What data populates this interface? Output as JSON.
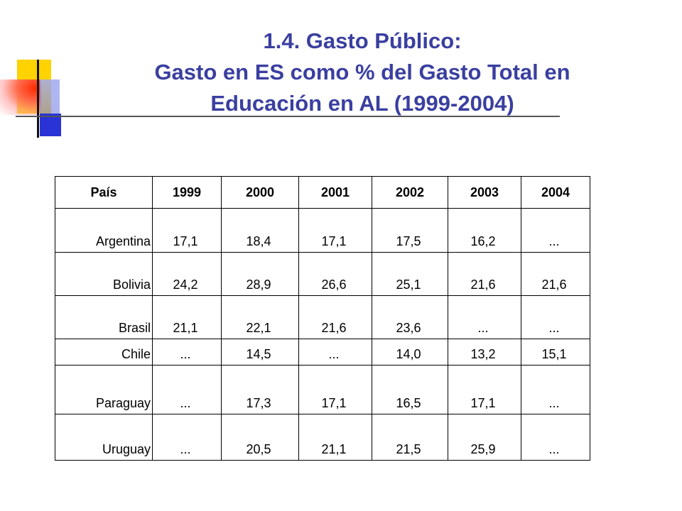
{
  "title": {
    "line1": "1.4. Gasto Público:",
    "line2": "Gasto en ES como % del Gasto Total en",
    "line3": "Educación en AL (1999-2004)"
  },
  "table": {
    "headers": [
      "País",
      "1999",
      "2000",
      "2001",
      "2002",
      "2003",
      "2004"
    ],
    "rows": [
      [
        "Argentina",
        "17,1",
        "18,4",
        "17,1",
        "17,5",
        "16,2",
        "..."
      ],
      [
        "Bolivia",
        "24,2",
        "28,9",
        "26,6",
        "25,1",
        "21,6",
        "21,6"
      ],
      [
        "Brasil",
        "21,1",
        "22,1",
        "21,6",
        "23,6",
        "...",
        "..."
      ],
      [
        "Chile",
        "...",
        "14,5",
        "...",
        "14,0",
        "13,2",
        "15,1"
      ],
      [
        "Paraguay",
        "...",
        "17,3",
        "17,1",
        "16,5",
        "17,1",
        "..."
      ],
      [
        "Uruguay",
        "...",
        "20,5",
        "21,1",
        "21,5",
        "25,9",
        "..."
      ]
    ]
  },
  "colors": {
    "title": "#3a3fa0",
    "ornament_yellow": "#ffd200",
    "ornament_blue": "#2a33d6",
    "ornament_red": "#ff2a00"
  }
}
